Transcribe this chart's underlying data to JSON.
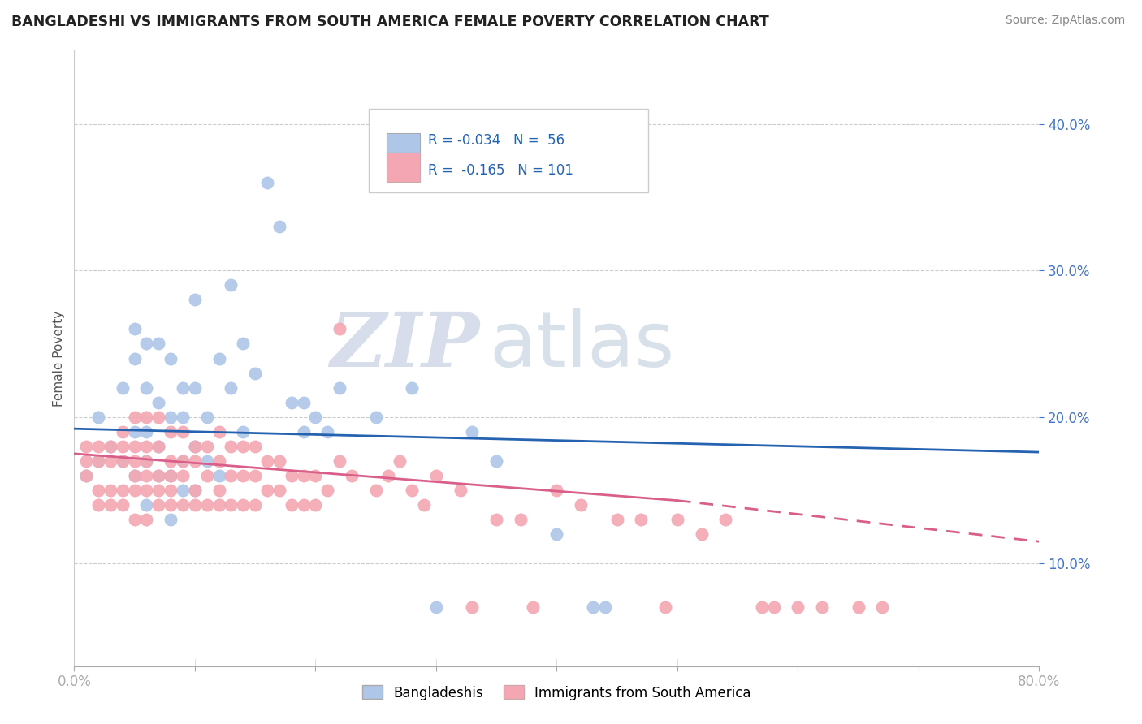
{
  "title": "BANGLADESHI VS IMMIGRANTS FROM SOUTH AMERICA FEMALE POVERTY CORRELATION CHART",
  "source": "Source: ZipAtlas.com",
  "ylabel": "Female Poverty",
  "xlim": [
    0.0,
    0.8
  ],
  "ylim": [
    0.03,
    0.45
  ],
  "yticks": [
    0.1,
    0.2,
    0.3,
    0.4
  ],
  "xtick_labels": [
    "0.0%",
    "",
    "",
    "",
    "",
    "",
    "",
    "",
    "80.0%"
  ],
  "legend1_label": "Bangladeshis",
  "legend2_label": "Immigrants from South America",
  "r1": -0.034,
  "n1": 56,
  "r2": -0.165,
  "n2": 101,
  "color1": "#aec6e8",
  "color2": "#f4a7b2",
  "trend1_color": "#2563b0",
  "trend2_color": "#d95f8a",
  "watermark_zip": "ZIP",
  "watermark_atlas": "atlas",
  "axis_color": "#4472c4",
  "bangladeshi_x": [
    0.01,
    0.02,
    0.02,
    0.03,
    0.04,
    0.04,
    0.05,
    0.05,
    0.05,
    0.05,
    0.06,
    0.06,
    0.06,
    0.06,
    0.06,
    0.07,
    0.07,
    0.07,
    0.07,
    0.08,
    0.08,
    0.08,
    0.08,
    0.09,
    0.09,
    0.09,
    0.09,
    0.1,
    0.1,
    0.1,
    0.1,
    0.11,
    0.11,
    0.12,
    0.12,
    0.13,
    0.13,
    0.14,
    0.14,
    0.15,
    0.16,
    0.17,
    0.18,
    0.19,
    0.19,
    0.2,
    0.21,
    0.22,
    0.25,
    0.28,
    0.3,
    0.33,
    0.35,
    0.4,
    0.43,
    0.44
  ],
  "bangladeshi_y": [
    0.16,
    0.17,
    0.2,
    0.18,
    0.17,
    0.22,
    0.16,
    0.19,
    0.24,
    0.26,
    0.17,
    0.19,
    0.22,
    0.25,
    0.14,
    0.16,
    0.18,
    0.21,
    0.25,
    0.13,
    0.16,
    0.2,
    0.24,
    0.15,
    0.17,
    0.2,
    0.22,
    0.15,
    0.18,
    0.22,
    0.28,
    0.17,
    0.2,
    0.16,
    0.24,
    0.22,
    0.29,
    0.19,
    0.25,
    0.23,
    0.36,
    0.33,
    0.21,
    0.19,
    0.21,
    0.2,
    0.19,
    0.22,
    0.2,
    0.22,
    0.07,
    0.19,
    0.17,
    0.12,
    0.07,
    0.07
  ],
  "southamerica_x": [
    0.01,
    0.01,
    0.01,
    0.02,
    0.02,
    0.02,
    0.02,
    0.03,
    0.03,
    0.03,
    0.03,
    0.04,
    0.04,
    0.04,
    0.04,
    0.04,
    0.05,
    0.05,
    0.05,
    0.05,
    0.05,
    0.05,
    0.06,
    0.06,
    0.06,
    0.06,
    0.06,
    0.06,
    0.07,
    0.07,
    0.07,
    0.07,
    0.07,
    0.08,
    0.08,
    0.08,
    0.08,
    0.08,
    0.09,
    0.09,
    0.09,
    0.09,
    0.1,
    0.1,
    0.1,
    0.1,
    0.11,
    0.11,
    0.11,
    0.12,
    0.12,
    0.12,
    0.12,
    0.13,
    0.13,
    0.13,
    0.14,
    0.14,
    0.14,
    0.15,
    0.15,
    0.15,
    0.16,
    0.16,
    0.17,
    0.17,
    0.18,
    0.18,
    0.19,
    0.19,
    0.2,
    0.2,
    0.21,
    0.22,
    0.22,
    0.23,
    0.25,
    0.26,
    0.27,
    0.28,
    0.29,
    0.3,
    0.32,
    0.33,
    0.35,
    0.37,
    0.38,
    0.4,
    0.42,
    0.45,
    0.47,
    0.49,
    0.5,
    0.52,
    0.54,
    0.57,
    0.58,
    0.6,
    0.62,
    0.65,
    0.67
  ],
  "southamerica_y": [
    0.16,
    0.17,
    0.18,
    0.14,
    0.15,
    0.17,
    0.18,
    0.14,
    0.15,
    0.17,
    0.18,
    0.14,
    0.15,
    0.17,
    0.18,
    0.19,
    0.13,
    0.15,
    0.16,
    0.17,
    0.18,
    0.2,
    0.13,
    0.15,
    0.16,
    0.17,
    0.18,
    0.2,
    0.14,
    0.15,
    0.16,
    0.18,
    0.2,
    0.14,
    0.15,
    0.16,
    0.17,
    0.19,
    0.14,
    0.16,
    0.17,
    0.19,
    0.14,
    0.15,
    0.17,
    0.18,
    0.14,
    0.16,
    0.18,
    0.14,
    0.15,
    0.17,
    0.19,
    0.14,
    0.16,
    0.18,
    0.14,
    0.16,
    0.18,
    0.14,
    0.16,
    0.18,
    0.15,
    0.17,
    0.15,
    0.17,
    0.14,
    0.16,
    0.14,
    0.16,
    0.14,
    0.16,
    0.15,
    0.26,
    0.17,
    0.16,
    0.15,
    0.16,
    0.17,
    0.15,
    0.14,
    0.16,
    0.15,
    0.07,
    0.13,
    0.13,
    0.07,
    0.15,
    0.14,
    0.13,
    0.13,
    0.07,
    0.13,
    0.12,
    0.13,
    0.07,
    0.07,
    0.07,
    0.07,
    0.07,
    0.07
  ],
  "trend_solid_limit": 0.5
}
